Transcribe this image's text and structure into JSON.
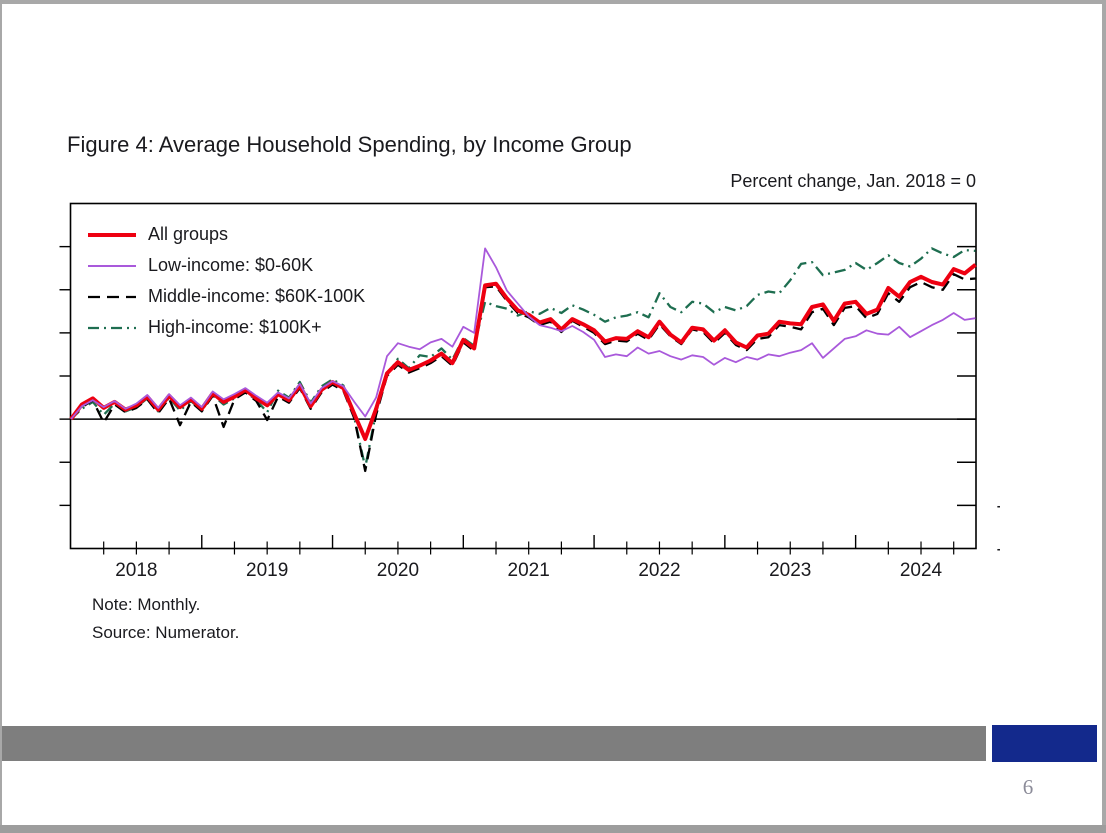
{
  "slide": {
    "title": "Figure 4: Average Household Spending, by Income Group",
    "subtitle": "Percent change, Jan. 2018 = 0",
    "note": "Note: Monthly.",
    "source": "Source: Numerator.",
    "page_number": "6",
    "colors": {
      "footer_bar": "#7e7e7e",
      "footer_accent": "#13298c",
      "slide_border": "#a8a8a8",
      "text": "#1a1a1e"
    }
  },
  "chart_data": {
    "type": "line",
    "title": "Figure 4: Average Household Spending, by Income Group",
    "unit_label": "Percent change, Jan. 2018 = 0",
    "frequency": "monthly",
    "x_start": "2018-01",
    "x_end": "2024-12",
    "x_tick_labels": [
      "2018",
      "2019",
      "2020",
      "2021",
      "2022",
      "2023",
      "2024"
    ],
    "y_ticks": [
      -15,
      -10,
      -5,
      0,
      5,
      10,
      15,
      20,
      25
    ],
    "ylim": [
      -15,
      25
    ],
    "zero_line": true,
    "grid": false,
    "legend_position": "top-left",
    "note": "Note: Monthly.",
    "source": "Source: Numerator.",
    "series": [
      {
        "name": "All groups",
        "color": "#ee0011",
        "line_style": "solid",
        "line_width": 4,
        "values": [
          0.0,
          1.7,
          2.4,
          1.3,
          2.0,
          1.1,
          1.6,
          2.6,
          1.1,
          2.7,
          1.4,
          2.3,
          1.2,
          3.0,
          2.0,
          2.6,
          3.4,
          2.4,
          1.6,
          2.9,
          2.2,
          3.9,
          1.5,
          3.4,
          4.3,
          3.6,
          0.6,
          -2.3,
          1.2,
          5.3,
          6.6,
          5.7,
          6.2,
          6.8,
          7.6,
          6.5,
          9.2,
          8.2,
          15.5,
          15.7,
          14.0,
          12.6,
          12.1,
          11.2,
          11.6,
          10.4,
          11.6,
          11.0,
          10.3,
          9.0,
          9.4,
          9.3,
          10.2,
          9.5,
          11.3,
          9.8,
          8.9,
          10.6,
          10.4,
          9.1,
          10.3,
          8.9,
          8.3,
          9.7,
          9.9,
          11.3,
          11.1,
          11.0,
          13.0,
          13.3,
          11.4,
          13.4,
          13.6,
          12.2,
          12.7,
          15.2,
          14.2,
          15.9,
          16.5,
          15.9,
          15.6,
          17.4,
          16.9,
          17.9
        ]
      },
      {
        "name": "Low-income: $0-60K",
        "color": "#a959db",
        "line_style": "solid",
        "line_width": 1.8,
        "values": [
          0.0,
          1.5,
          2.2,
          1.4,
          2.1,
          1.2,
          1.8,
          2.8,
          1.3,
          2.9,
          1.6,
          2.5,
          1.4,
          3.2,
          2.3,
          2.9,
          3.6,
          2.7,
          1.9,
          3.1,
          2.4,
          4.1,
          1.8,
          3.6,
          4.4,
          3.8,
          2.0,
          0.3,
          2.5,
          7.3,
          8.8,
          8.4,
          8.1,
          8.9,
          9.3,
          8.4,
          10.7,
          10.0,
          19.8,
          17.6,
          14.9,
          13.4,
          11.9,
          10.9,
          10.6,
          10.2,
          10.8,
          10.1,
          9.2,
          7.2,
          7.5,
          7.3,
          8.3,
          7.6,
          7.9,
          7.3,
          6.9,
          7.4,
          7.2,
          6.3,
          7.1,
          6.6,
          7.2,
          6.9,
          7.5,
          7.3,
          7.7,
          8.0,
          8.8,
          7.1,
          8.2,
          9.3,
          9.6,
          10.3,
          9.9,
          9.8,
          10.7,
          9.5,
          10.2,
          10.9,
          11.5,
          12.3,
          11.5,
          11.7
        ]
      },
      {
        "name": "Middle-income: $60K-100K",
        "color": "#000000",
        "line_style": "dashed",
        "line_width": 2.3,
        "values": [
          0.0,
          1.4,
          2.2,
          -0.4,
          1.7,
          0.8,
          1.3,
          2.3,
          0.7,
          2.4,
          -0.7,
          2.0,
          0.9,
          2.7,
          -0.9,
          2.3,
          3.1,
          2.1,
          -0.1,
          2.6,
          1.9,
          3.6,
          1.2,
          3.1,
          4.0,
          3.3,
          0.1,
          -6.0,
          0.5,
          5.0,
          6.3,
          5.4,
          5.9,
          6.5,
          7.3,
          6.2,
          8.9,
          7.9,
          15.3,
          15.4,
          13.7,
          12.3,
          11.8,
          10.9,
          11.3,
          10.1,
          11.4,
          10.7,
          10.0,
          8.7,
          9.1,
          9.0,
          9.9,
          9.2,
          11.0,
          9.6,
          8.7,
          10.4,
          10.1,
          8.8,
          10.0,
          8.6,
          8.0,
          9.3,
          9.5,
          10.9,
          10.7,
          10.4,
          12.4,
          12.8,
          10.9,
          12.9,
          13.1,
          11.7,
          12.2,
          14.6,
          13.6,
          15.3,
          15.9,
          15.3,
          15.0,
          16.8,
          16.2,
          16.3
        ]
      },
      {
        "name": "High-income: $100K+",
        "color": "#1e6e50",
        "line_style": "dash-dot",
        "line_width": 2.3,
        "values": [
          0.0,
          1.2,
          2.0,
          0.5,
          1.8,
          0.9,
          1.4,
          2.4,
          0.9,
          2.5,
          1.0,
          2.1,
          1.0,
          2.8,
          1.7,
          2.4,
          3.2,
          2.2,
          0.8,
          3.3,
          2.5,
          4.3,
          1.9,
          3.8,
          4.6,
          3.9,
          0.2,
          -5.6,
          0.8,
          5.1,
          7.0,
          5.9,
          7.4,
          7.2,
          8.2,
          6.9,
          9.4,
          8.5,
          13.6,
          13.1,
          12.8,
          12.0,
          12.5,
          12.2,
          12.9,
          12.3,
          13.2,
          12.7,
          12.1,
          11.3,
          11.8,
          12.0,
          12.4,
          11.8,
          14.6,
          13.0,
          12.4,
          13.6,
          13.4,
          12.4,
          13.0,
          12.6,
          13.1,
          14.4,
          14.8,
          14.6,
          16.1,
          18.0,
          18.2,
          16.7,
          17.0,
          17.3,
          18.1,
          17.3,
          18.1,
          19.0,
          18.1,
          17.7,
          18.6,
          19.8,
          19.2,
          18.8,
          19.6,
          19.5
        ]
      }
    ]
  }
}
